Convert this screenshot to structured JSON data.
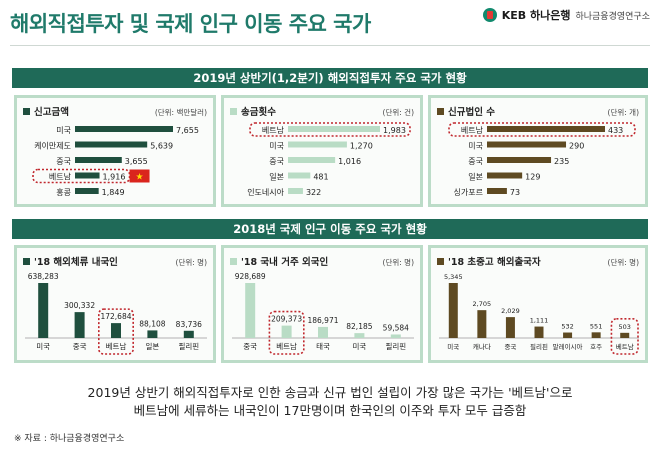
{
  "header": {
    "title": "해외직접투자 및 국제 인구 이동 주요 국가",
    "brand_name": "KEB 하나은행",
    "brand_sub": "하나금융경영연구소"
  },
  "section1": {
    "title": "2019년 상반기(1,2분기) 해외직접투자 주요 국가 현황"
  },
  "section2": {
    "title": "2018년 국제 인구 이동 주요 국가 현황"
  },
  "footer": {
    "line1": "2019년 상반기 해외직접투자로 인한 송금과 신규 법인 설립이 가장 많은 국가는 '베트남'으로",
    "line2": "베트남에 세류하는 내국인이 17만명이며 한국인의 이주와 투자 모두 급증함",
    "source": "※ 자료 : 하나금융경영연구소"
  },
  "colors": {
    "green_dark": "#1f4f3e",
    "green_light": "#b9dcc5",
    "brown": "#5e4a22",
    "highlight": "#c0272d",
    "band": "#1f6a58"
  },
  "chart_data": [
    {
      "type": "bar",
      "orientation": "horizontal",
      "title": "신고금액",
      "unit": "(단위: 백만달러)",
      "categories": [
        "미국",
        "케이만제도",
        "중국",
        "베트남",
        "홍콩"
      ],
      "values": [
        7655,
        5639,
        3655,
        1916,
        1849
      ],
      "highlight": "베트남",
      "color": "#1f4f3e"
    },
    {
      "type": "bar",
      "orientation": "horizontal",
      "title": "송금횟수",
      "unit": "(단위: 건)",
      "categories": [
        "베트남",
        "미국",
        "중국",
        "일본",
        "인도네시아"
      ],
      "values": [
        1983,
        1270,
        1016,
        481,
        322
      ],
      "highlight": "베트남",
      "color": "#b9dcc5"
    },
    {
      "type": "bar",
      "orientation": "horizontal",
      "title": "신규법인 수",
      "unit": "(단위: 개)",
      "categories": [
        "베트남",
        "미국",
        "중국",
        "일본",
        "싱가포르"
      ],
      "values": [
        433,
        290,
        235,
        129,
        73
      ],
      "highlight": "베트남",
      "color": "#5e4a22"
    },
    {
      "type": "bar",
      "title": "'18 해외체류 내국인",
      "unit": "(단위: 명)",
      "categories": [
        "미국",
        "중국",
        "베트남",
        "일본",
        "필리핀"
      ],
      "values": [
        638283,
        300332,
        172684,
        88108,
        83736
      ],
      "labels": [
        "638,283",
        "300,332",
        "172,684",
        "88,108",
        "83,736"
      ],
      "highlight": "베트남",
      "color": "#1f4f3e"
    },
    {
      "type": "bar",
      "title": "'18 국내 거주 외국인",
      "unit": "(단위: 명)",
      "categories": [
        "중국",
        "베트남",
        "태국",
        "미국",
        "필리핀"
      ],
      "values": [
        928689,
        209373,
        186971,
        82185,
        59584
      ],
      "labels": [
        "928,689",
        "209,373",
        "186,971",
        "82,185",
        "59,584"
      ],
      "highlight": "베트남",
      "color": "#b9dcc5"
    },
    {
      "type": "bar",
      "title": "'18 초중고 해외출국자",
      "unit": "(단위: 명)",
      "categories": [
        "미국",
        "캐나다",
        "중국",
        "필리핀",
        "말레이시아",
        "호주",
        "베트남"
      ],
      "values": [
        5345,
        2705,
        2029,
        1111,
        532,
        551,
        503
      ],
      "labels": [
        "5,345",
        "2,705",
        "2,029",
        "1,111",
        "532",
        "551",
        "503"
      ],
      "highlight": "베트남",
      "color": "#5e4a22"
    }
  ]
}
